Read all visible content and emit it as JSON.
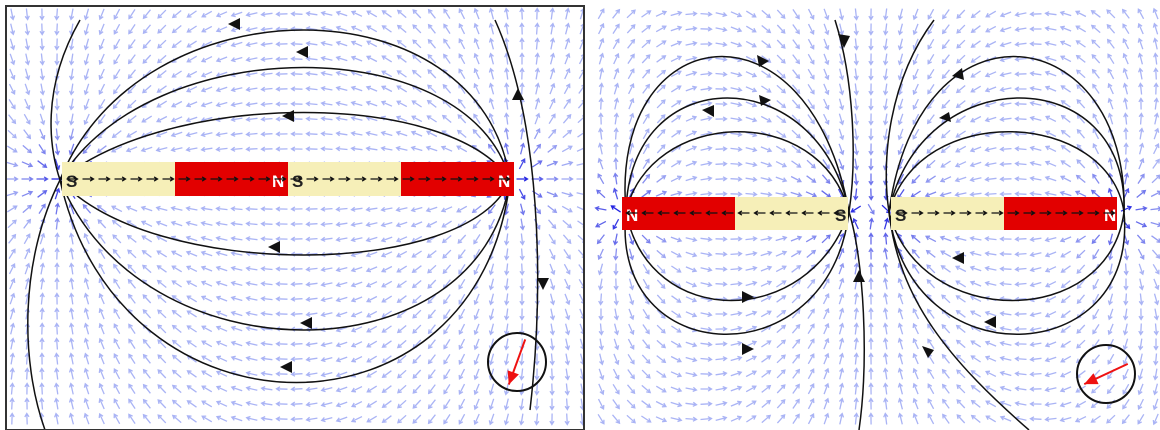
{
  "panels": [
    {
      "magnets": [
        {
          "south_label": "S",
          "north_label": "N"
        },
        {
          "south_label": "S",
          "north_label": "N"
        }
      ],
      "compass": {
        "needle_angle_deg": 110
      }
    },
    {
      "magnets": [
        {
          "south_label": "S",
          "north_label": "N"
        },
        {
          "south_label": "S",
          "north_label": "N"
        }
      ],
      "compass": {
        "needle_angle_deg": 155
      }
    }
  ],
  "colors": {
    "north_pole": "#e20000",
    "south_pole": "#f6efb8",
    "field_line": "#111111",
    "vector_weak": "#aab4f5",
    "vector_strong": "#1a1ae0",
    "compass_needle": "#ee1111",
    "frame": "#333333"
  }
}
